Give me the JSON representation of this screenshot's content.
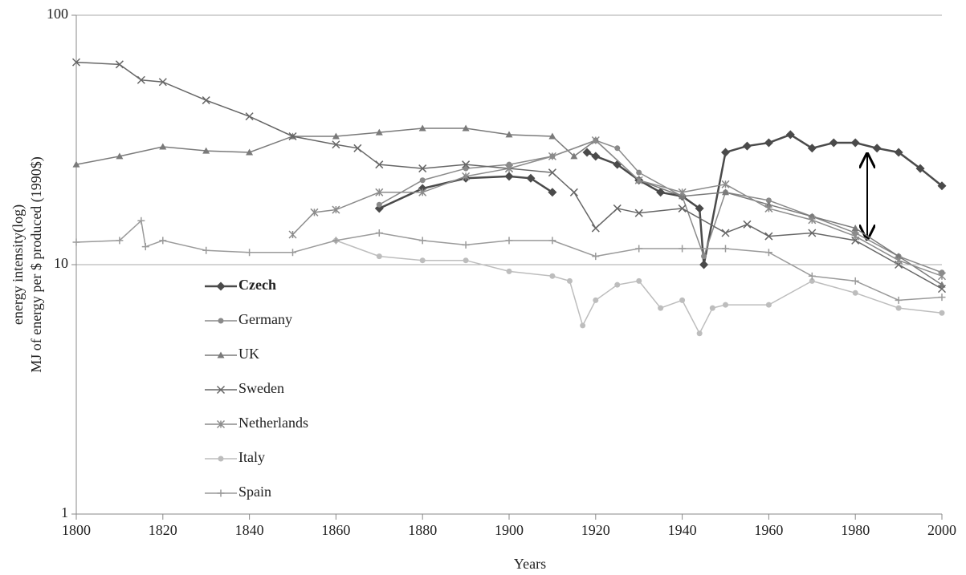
{
  "chart_data": {
    "type": "line",
    "y_label_lines": [
      "energy intensity(log)",
      "MJ of energy per $ produced (1990$)"
    ],
    "x_label": "Years",
    "xlim": [
      1800,
      2000
    ],
    "xticks": [
      1800,
      1820,
      1840,
      1860,
      1880,
      1900,
      1920,
      1940,
      1960,
      1980,
      2000
    ],
    "ylim": [
      1,
      100
    ],
    "yticks": [
      1,
      10,
      100
    ],
    "log_y": true,
    "grid": true,
    "legend_position": "inside-left",
    "series": [
      {
        "name": "Czech",
        "color": "#4a4a4a",
        "marker": "diamond",
        "bold": true,
        "x": [
          1870,
          1880,
          1890,
          1900,
          1905,
          1910,
          1914,
          1918,
          1920,
          1925,
          1930,
          1935,
          1940,
          1944,
          1945,
          1950,
          1955,
          1960,
          1965,
          1970,
          1975,
          1980,
          1985,
          1990,
          1995,
          2000
        ],
        "values": [
          16.8,
          20.2,
          22.2,
          22.6,
          22.2,
          19.5,
          null,
          28.2,
          27.2,
          25.2,
          21.8,
          19.5,
          18.8,
          16.8,
          10,
          28.2,
          29.9,
          30.8,
          33.2,
          29.3,
          30.8,
          30.8,
          29.3,
          28.2,
          24.3,
          20.7
        ]
      },
      {
        "name": "Germany",
        "color": "#8a8a8a",
        "marker": "circle",
        "x": [
          1870,
          1880,
          1890,
          1900,
          1910,
          1920,
          1925,
          1930,
          1940,
          1945,
          1950,
          1960,
          1970,
          1980,
          1990,
          2000
        ],
        "values": [
          17.4,
          21.8,
          24.3,
          25.2,
          27.2,
          31.5,
          29.3,
          23.4,
          18.8,
          10.8,
          19.5,
          18.1,
          15.6,
          13.4,
          10.8,
          9.3
        ]
      },
      {
        "name": "UK",
        "color": "#7a7a7a",
        "marker": "triangle",
        "x": [
          1800,
          1810,
          1820,
          1830,
          1840,
          1850,
          1860,
          1870,
          1880,
          1890,
          1900,
          1910,
          1915,
          1920,
          1930,
          1940,
          1950,
          1960,
          1970,
          1980,
          1990,
          2000
        ],
        "values": [
          25.2,
          27.2,
          29.7,
          28.6,
          28.2,
          32.7,
          32.7,
          33.9,
          35.2,
          35.2,
          33.2,
          32.7,
          27.2,
          31.5,
          21.8,
          18.8,
          19.5,
          17.4,
          15.6,
          14.0,
          10.8,
          8.3
        ]
      },
      {
        "name": "Sweden",
        "color": "#666666",
        "marker": "x",
        "x": [
          1800,
          1810,
          1815,
          1820,
          1830,
          1840,
          1850,
          1860,
          1865,
          1870,
          1880,
          1890,
          1900,
          1910,
          1915,
          1920,
          1925,
          1930,
          1940,
          1950,
          1955,
          1960,
          1970,
          1980,
          1990,
          2000
        ],
        "values": [
          64.8,
          63.5,
          55.0,
          54.0,
          45.6,
          39.3,
          32.7,
          30.3,
          29.3,
          25.2,
          24.3,
          25.2,
          24.3,
          23.4,
          19.5,
          14.0,
          16.8,
          16.1,
          16.8,
          13.4,
          14.5,
          13.0,
          13.4,
          12.5,
          10,
          8.0
        ]
      },
      {
        "name": "Netherlands",
        "color": "#8c8c8c",
        "marker": "asterisk",
        "x": [
          1850,
          1855,
          1860,
          1870,
          1880,
          1890,
          1900,
          1910,
          1920,
          1930,
          1940,
          1950,
          1960,
          1970,
          1980,
          1990,
          2000
        ],
        "values": [
          13.2,
          16.2,
          16.6,
          19.5,
          19.5,
          22.6,
          24.3,
          27.2,
          31.5,
          21.8,
          19.5,
          21.0,
          16.8,
          15.1,
          13.0,
          10.4,
          9.0
        ]
      },
      {
        "name": "Italy",
        "color": "#bdbdbd",
        "marker": "circle",
        "x": [
          1860,
          1870,
          1880,
          1890,
          1900,
          1910,
          1914,
          1917,
          1920,
          1925,
          1930,
          1935,
          1940,
          1944,
          1947,
          1950,
          1960,
          1970,
          1980,
          1990,
          2000
        ],
        "values": [
          12.5,
          10.8,
          10.4,
          10.4,
          9.4,
          9.0,
          8.6,
          5.7,
          7.2,
          8.3,
          8.6,
          6.7,
          7.2,
          5.3,
          6.7,
          6.9,
          6.9,
          8.6,
          7.7,
          6.7,
          6.4
        ]
      },
      {
        "name": "Spain",
        "color": "#9a9a9a",
        "marker": "plus",
        "x": [
          1800,
          1810,
          1815,
          1816,
          1820,
          1830,
          1840,
          1850,
          1860,
          1870,
          1880,
          1890,
          1900,
          1910,
          1920,
          1930,
          1940,
          1950,
          1960,
          1970,
          1980,
          1990,
          2000
        ],
        "values": [
          12.3,
          12.5,
          15.0,
          11.8,
          12.5,
          11.4,
          11.2,
          11.2,
          12.5,
          13.4,
          12.5,
          12.0,
          12.5,
          12.5,
          10.8,
          11.6,
          11.6,
          11.6,
          11.2,
          9.0,
          8.6,
          7.2,
          7.4
        ]
      }
    ]
  }
}
